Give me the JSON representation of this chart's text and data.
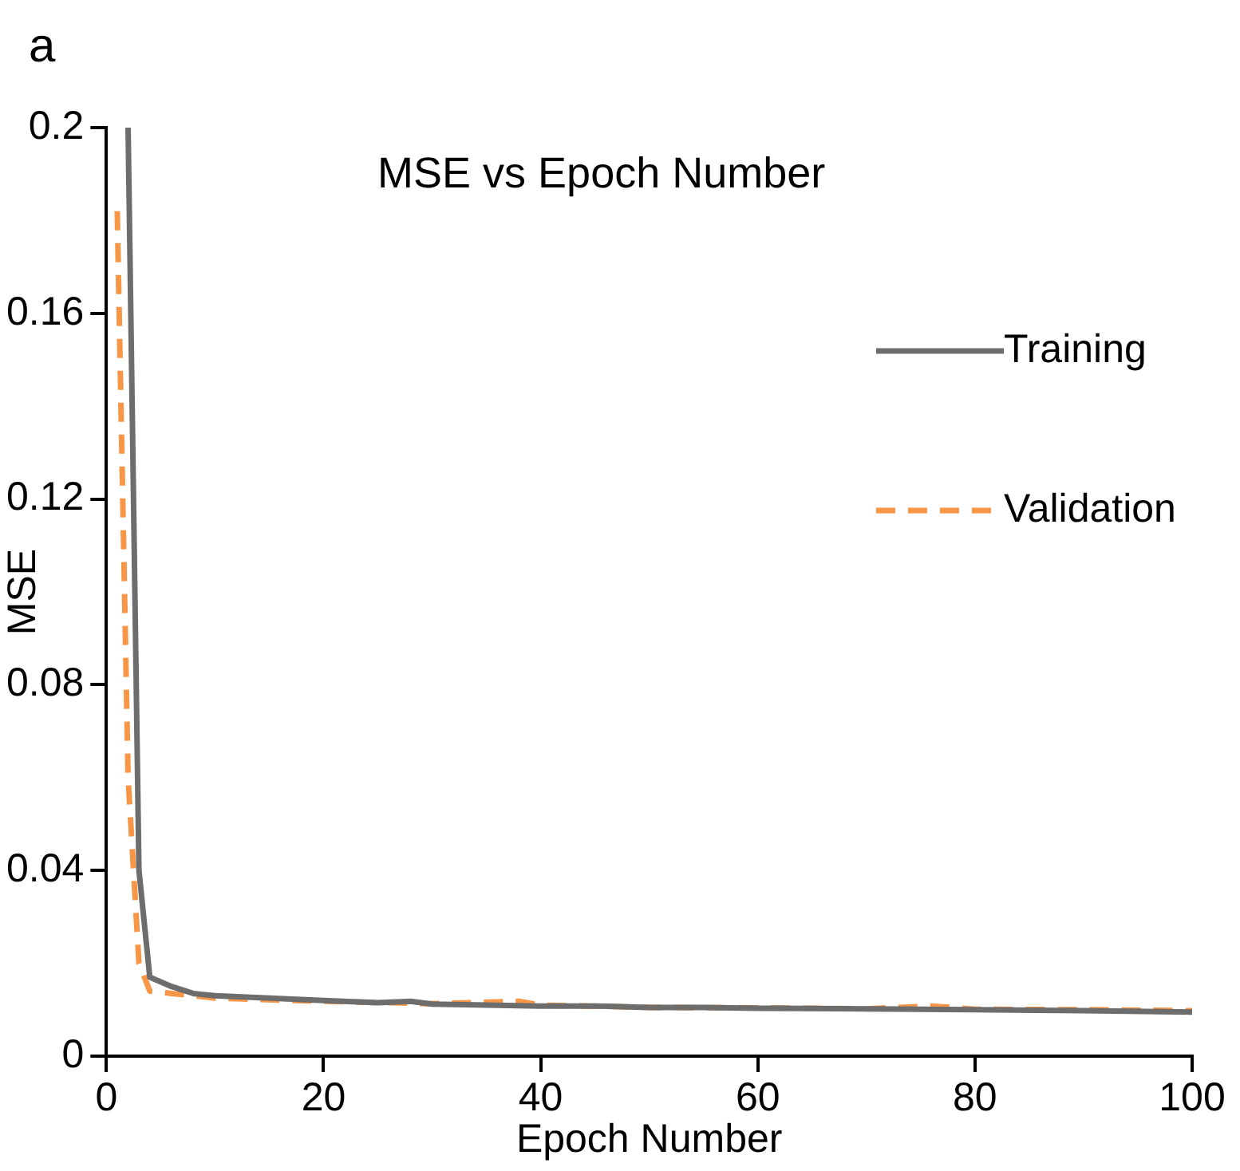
{
  "chart_data": {
    "type": "line",
    "title": "MSE vs Epoch Number",
    "xlabel": "Epoch Number",
    "ylabel": "MSE",
    "annotations": [
      "a"
    ],
    "xlim": [
      0,
      100
    ],
    "xticks": [
      0,
      20,
      40,
      60,
      80,
      100
    ],
    "ylim": [
      0,
      0.2
    ],
    "yticks": [
      0,
      0.04,
      0.08,
      0.12,
      0.16,
      0.2
    ],
    "grid": false,
    "legend": "top right",
    "marker": "none",
    "series": [
      {
        "name": "Training",
        "color": "#6d6d6d",
        "line_style": "solid",
        "x": [
          2,
          3,
          4,
          6,
          8,
          10,
          15,
          20,
          25,
          28,
          30,
          35,
          40,
          45,
          50,
          55,
          60,
          70,
          80,
          90,
          100
        ],
        "values": [
          0.2,
          0.04,
          0.017,
          0.015,
          0.0135,
          0.013,
          0.0125,
          0.012,
          0.0115,
          0.0118,
          0.0112,
          0.011,
          0.0108,
          0.0108,
          0.0105,
          0.0105,
          0.0103,
          0.0102,
          0.01,
          0.0098,
          0.0095
        ]
      },
      {
        "name": "Validation",
        "color": "#f79646",
        "line_style": "dashed",
        "x": [
          1,
          2,
          3,
          4,
          6,
          10,
          20,
          30,
          38,
          40,
          50,
          60,
          70,
          76,
          80,
          90,
          100
        ],
        "values": [
          0.182,
          0.06,
          0.02,
          0.014,
          0.0135,
          0.0125,
          0.0118,
          0.0113,
          0.0118,
          0.011,
          0.0105,
          0.0104,
          0.0102,
          0.0108,
          0.0101,
          0.01,
          0.0098
        ]
      }
    ]
  }
}
